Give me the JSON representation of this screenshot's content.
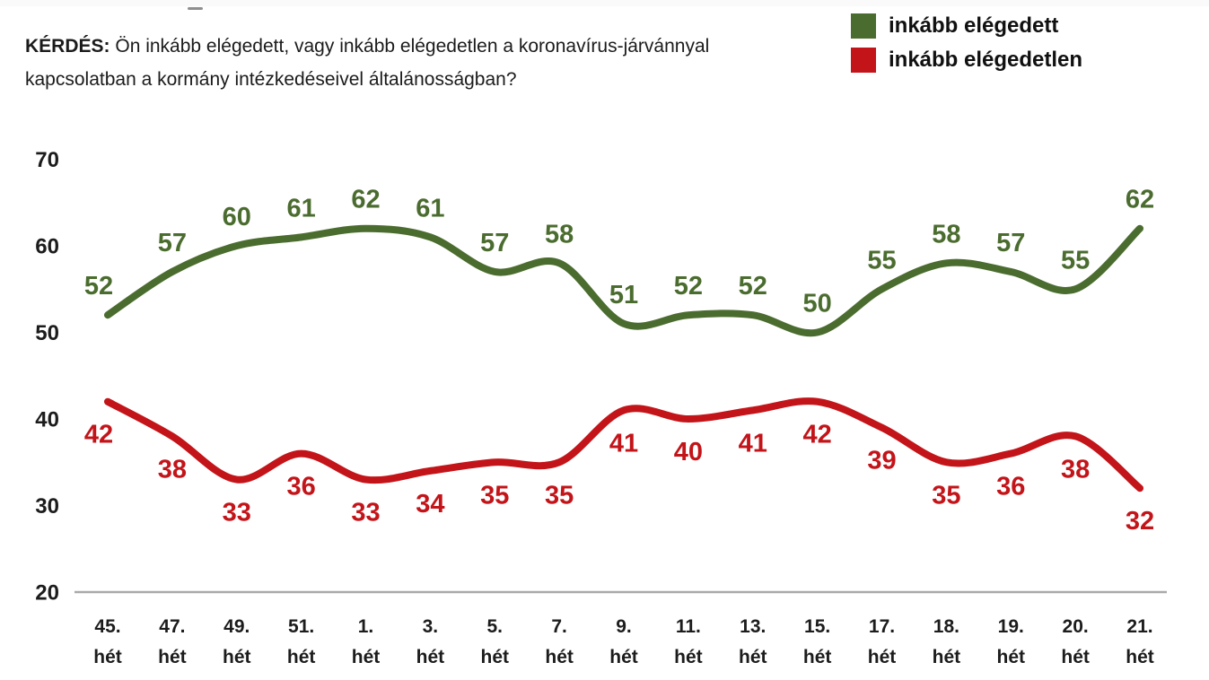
{
  "title": {
    "prefix": "KÉRDÉS:",
    "line1": "Ön inkább elégedett, vagy inkább elégedetlen a koronavírus-járvánnyal",
    "line2": "kapcsolatban a kormány intézkedéseivel általánosságban?"
  },
  "legend": [
    {
      "label": "inkább elégedett",
      "color": "#4b6c2f"
    },
    {
      "label": "inkább elégedetlen",
      "color": "#c31419"
    }
  ],
  "chart_data": {
    "type": "line",
    "categories": [
      "45. hét",
      "47. hét",
      "49. hét",
      "51. hét",
      "1. hét",
      "3. hét",
      "5. hét",
      "7. hét",
      "9. hét",
      "11. hét",
      "13. hét",
      "15. hét",
      "17. hét",
      "18. hét",
      "19. hét",
      "20. hét",
      "21. hét"
    ],
    "series": [
      {
        "name": "inkább elégedett",
        "color": "#4b6c2f",
        "label_position": "above",
        "values": [
          52,
          57,
          60,
          61,
          62,
          61,
          57,
          58,
          51,
          52,
          52,
          50,
          55,
          58,
          57,
          55,
          62
        ]
      },
      {
        "name": "inkább elégedetlen",
        "color": "#c31419",
        "label_position": "below",
        "values": [
          42,
          38,
          33,
          36,
          33,
          34,
          35,
          35,
          41,
          40,
          41,
          42,
          39,
          35,
          36,
          38,
          32
        ]
      }
    ],
    "y_ticks": [
      70,
      60,
      50,
      40,
      30,
      20
    ],
    "ylim": [
      20,
      70
    ],
    "grid": false,
    "smoothed": true,
    "axis_line_color": "#a9a9a9",
    "text_color": "#1c1c1c",
    "legend_position": "top-right"
  }
}
